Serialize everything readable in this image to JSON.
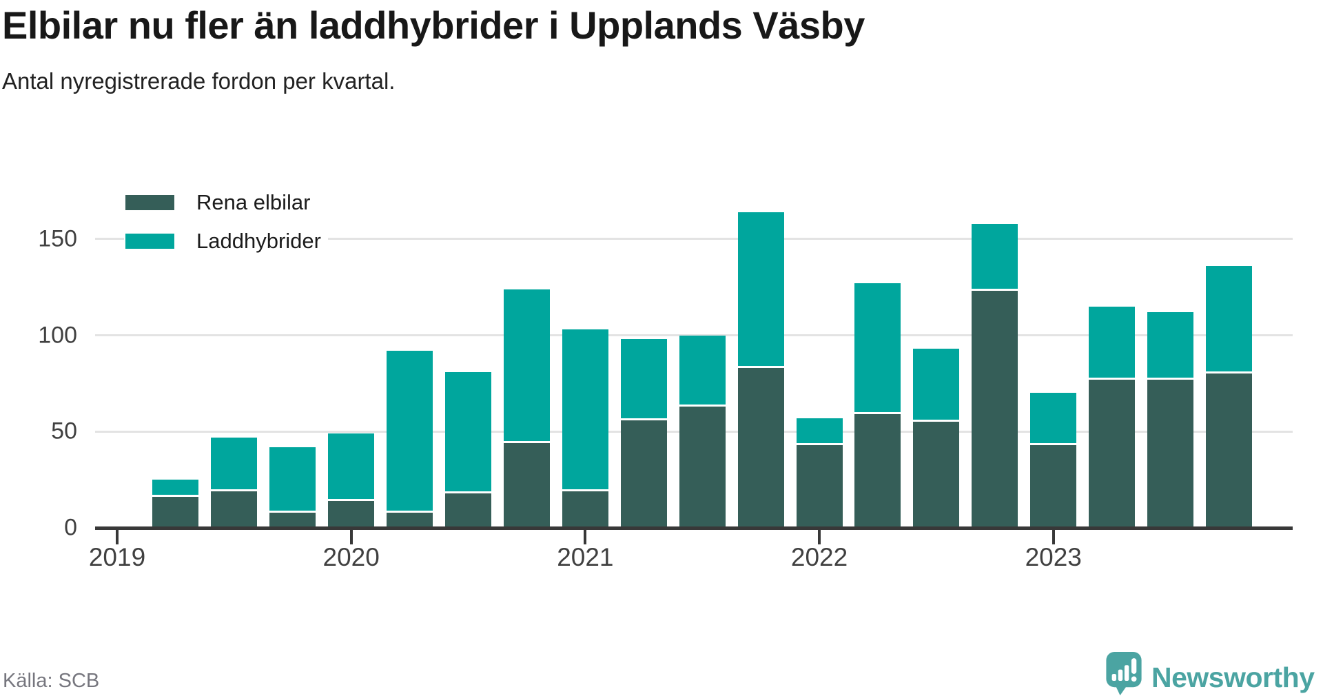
{
  "header": {
    "title": "Elbilar nu fler än laddhybrider i Upplands Väsby",
    "subtitle": "Antal nyregistrerade fordon per kvartal."
  },
  "legend": [
    {
      "label": "Rena elbilar",
      "color": "#355e58"
    },
    {
      "label": "Laddhybrider",
      "color": "#00a69d"
    }
  ],
  "footer": {
    "source": "Källa: SCB",
    "brand": "Newsworthy"
  },
  "colors": {
    "electric": "#355e58",
    "hybrid": "#00a69d",
    "gridline": "#e3e3e3",
    "axis": "#383838",
    "logo_teal": "#4ba4a2"
  },
  "chart_data": {
    "type": "bar",
    "stacked": true,
    "title": "Elbilar nu fler än laddhybrider i Upplands Väsby",
    "subtitle": "Antal nyregistrerade fordon per kvartal.",
    "xlabel": "",
    "ylabel": "",
    "categories": [
      "2019 Q2",
      "2019 Q3",
      "2019 Q4",
      "2020 Q1",
      "2020 Q2",
      "2020 Q3",
      "2020 Q4",
      "2021 Q1",
      "2021 Q2",
      "2021 Q3",
      "2021 Q4",
      "2022 Q1",
      "2022 Q2",
      "2022 Q3",
      "2022 Q4",
      "2023 Q1",
      "2023 Q2",
      "2023 Q3",
      "2023 Q4"
    ],
    "series": [
      {
        "name": "Rena elbilar",
        "color": "#355e58",
        "values": [
          16,
          19,
          8,
          14,
          8,
          18,
          44,
          19,
          56,
          63,
          83,
          43,
          59,
          55,
          123,
          43,
          77,
          77,
          80
        ]
      },
      {
        "name": "Laddhybrider",
        "color": "#00a69d",
        "values": [
          9,
          28,
          34,
          35,
          84,
          63,
          80,
          84,
          42,
          37,
          81,
          14,
          68,
          38,
          35,
          27,
          38,
          35,
          56
        ]
      }
    ],
    "totals": [
      25,
      47,
      42,
      49,
      92,
      81,
      124,
      103,
      98,
      100,
      164,
      57,
      127,
      93,
      158,
      70,
      115,
      112,
      136
    ],
    "y_ticks": [
      0,
      50,
      100,
      150
    ],
    "x_tick_labels": [
      "2019",
      "2020",
      "2021",
      "2022",
      "2023"
    ],
    "ylim": [
      0,
      185
    ],
    "grid": "horizontal",
    "legend_position": "top-left"
  }
}
